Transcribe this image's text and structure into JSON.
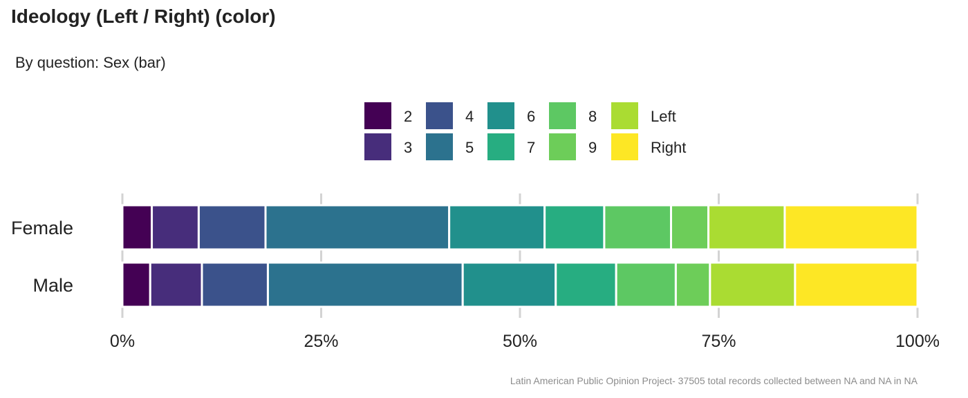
{
  "title": "Ideology (Left / Right) (color)",
  "subtitle": "By question: Sex (bar)",
  "caption": "Latin American Public Opinion Project- 37505 total records collected between NA and NA in  NA",
  "chart_data": {
    "type": "bar",
    "orientation": "horizontal",
    "stacked": "percent",
    "categories": [
      "Female",
      "Male"
    ],
    "series": [
      {
        "name": "2",
        "color": "#440154",
        "values": [
          3.7,
          3.5
        ]
      },
      {
        "name": "3",
        "color": "#472D7B",
        "values": [
          5.9,
          6.5
        ]
      },
      {
        "name": "4",
        "color": "#3B528B",
        "values": [
          8.4,
          8.3
        ]
      },
      {
        "name": "5",
        "color": "#2C728E",
        "values": [
          23.1,
          24.5
        ]
      },
      {
        "name": "6",
        "color": "#21908C",
        "values": [
          12.0,
          11.7
        ]
      },
      {
        "name": "7",
        "color": "#27AD81",
        "values": [
          7.5,
          7.6
        ]
      },
      {
        "name": "8",
        "color": "#5DC863",
        "values": [
          8.4,
          7.5
        ]
      },
      {
        "name": "9",
        "color": "#6DCD59",
        "values": [
          4.7,
          4.3
        ]
      },
      {
        "name": "Left",
        "color": "#AADC32",
        "values": [
          9.6,
          10.7
        ]
      },
      {
        "name": "Right",
        "color": "#FDE725",
        "values": [
          16.7,
          15.4
        ]
      }
    ],
    "xlim": [
      0,
      100
    ],
    "x_ticks": [
      "0%",
      "25%",
      "50%",
      "75%",
      "100%"
    ],
    "grid": true,
    "legend_position": "top"
  }
}
